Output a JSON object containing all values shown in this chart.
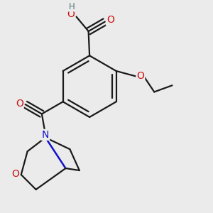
{
  "bg_color": "#ebebeb",
  "atom_colors": {
    "C": "#1a1a1a",
    "O": "#cc1111",
    "N": "#1111cc",
    "H": "#557777"
  },
  "bond_color": "#1a1a1a",
  "bond_width": 1.6,
  "figsize": [
    3.0,
    3.0
  ],
  "dpi": 100,
  "xlim": [
    0.0,
    1.0
  ],
  "ylim": [
    0.0,
    1.0
  ]
}
